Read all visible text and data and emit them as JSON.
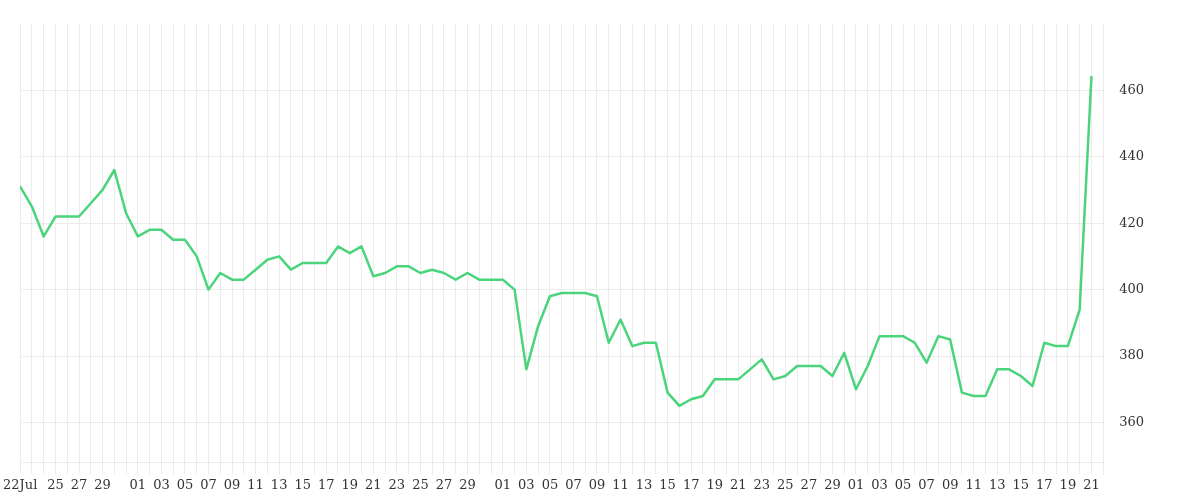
{
  "chart_data": {
    "type": "line",
    "color": "#4cd47d",
    "x": [
      "--07-22",
      "--07-23",
      "--07-24",
      "--07-25",
      "--07-26",
      "--07-27",
      "--07-28",
      "--07-29",
      "--07-30",
      "--07-31",
      "--08-01",
      "--08-02",
      "--08-03",
      "--08-04",
      "--08-05",
      "--08-06",
      "--08-07",
      "--08-08",
      "--08-09",
      "--08-10",
      "--08-11",
      "--08-12",
      "--08-13",
      "--08-14",
      "--08-15",
      "--08-16",
      "--08-17",
      "--08-18",
      "--08-19",
      "--08-20",
      "--08-21",
      "--08-22",
      "--08-23",
      "--08-24",
      "--08-25",
      "--08-26",
      "--08-27",
      "--08-28",
      "--08-29",
      "--08-30",
      "--08-31",
      "--09-01",
      "--09-02",
      "--09-03",
      "--09-04",
      "--09-05",
      "--09-06",
      "--09-07",
      "--09-08",
      "--09-09",
      "--09-10",
      "--09-11",
      "--09-12",
      "--09-13",
      "--09-14",
      "--09-15",
      "--09-16",
      "--09-17",
      "--09-18",
      "--09-19",
      "--09-20",
      "--09-21",
      "--09-22",
      "--09-23",
      "--09-24",
      "--09-25",
      "--09-26",
      "--09-27",
      "--09-28",
      "--09-29",
      "--09-30",
      "--10-01",
      "--10-02",
      "--10-03",
      "--10-04",
      "--10-05",
      "--10-06",
      "--10-07",
      "--10-08",
      "--10-09",
      "--10-10",
      "--10-11",
      "--10-12",
      "--10-13",
      "--10-14",
      "--10-15",
      "--10-16",
      "--10-17",
      "--10-18",
      "--10-19",
      "--10-20",
      "--10-21"
    ],
    "values": [
      431,
      425,
      416,
      422,
      422,
      422,
      426,
      430,
      436,
      423,
      416,
      418,
      418,
      415,
      415,
      410,
      400,
      405,
      403,
      403,
      406,
      409,
      410,
      406,
      408,
      408,
      408,
      413,
      411,
      413,
      404,
      405,
      407,
      407,
      405,
      406,
      405,
      403,
      405,
      403,
      403,
      403,
      400,
      376,
      389,
      398,
      399,
      399,
      399,
      398,
      384,
      391,
      383,
      384,
      384,
      369,
      365,
      367,
      368,
      373,
      373,
      373,
      376,
      379,
      373,
      374,
      377,
      377,
      377,
      374,
      381,
      370,
      377,
      386,
      386,
      386,
      384,
      378,
      386,
      385,
      369,
      368,
      368,
      376,
      376,
      374,
      371,
      384,
      383,
      383,
      394,
      464
    ],
    "xlim": [
      "--07-22",
      "--10-22"
    ],
    "xticks": [
      {
        "value": "--07-22",
        "label": "22Jul"
      },
      {
        "value": "--07-23",
        "label": null
      },
      {
        "value": "--07-24",
        "label": null
      },
      {
        "value": "--07-25",
        "label": "25"
      },
      {
        "value": "--07-26",
        "label": null
      },
      {
        "value": "--07-27",
        "label": "27"
      },
      {
        "value": "--07-28",
        "label": null
      },
      {
        "value": "--07-29",
        "label": "29"
      },
      {
        "value": "--07-30",
        "label": null
      },
      {
        "value": "--07-31",
        "label": null
      },
      {
        "value": "--08-01",
        "label": "01"
      },
      {
        "value": "--08-02",
        "label": null
      },
      {
        "value": "--08-03",
        "label": "03"
      },
      {
        "value": "--08-04",
        "label": null
      },
      {
        "value": "--08-05",
        "label": "05"
      },
      {
        "value": "--08-06",
        "label": null
      },
      {
        "value": "--08-07",
        "label": "07"
      },
      {
        "value": "--08-08",
        "label": null
      },
      {
        "value": "--08-09",
        "label": "09"
      },
      {
        "value": "--08-10",
        "label": null
      },
      {
        "value": "--08-11",
        "label": "11"
      },
      {
        "value": "--08-12",
        "label": null
      },
      {
        "value": "--08-13",
        "label": "13"
      },
      {
        "value": "--08-14",
        "label": null
      },
      {
        "value": "--08-15",
        "label": "15"
      },
      {
        "value": "--08-16",
        "label": null
      },
      {
        "value": "--08-17",
        "label": "17"
      },
      {
        "value": "--08-18",
        "label": null
      },
      {
        "value": "--08-19",
        "label": "19"
      },
      {
        "value": "--08-20",
        "label": null
      },
      {
        "value": "--08-21",
        "label": "21"
      },
      {
        "value": "--08-22",
        "label": null
      },
      {
        "value": "--08-23",
        "label": "23"
      },
      {
        "value": "--08-24",
        "label": null
      },
      {
        "value": "--08-25",
        "label": "25"
      },
      {
        "value": "--08-26",
        "label": null
      },
      {
        "value": "--08-27",
        "label": "27"
      },
      {
        "value": "--08-28",
        "label": null
      },
      {
        "value": "--08-29",
        "label": "29"
      },
      {
        "value": "--08-30",
        "label": null
      },
      {
        "value": "--08-31",
        "label": null
      },
      {
        "value": "--09-01",
        "label": "01"
      },
      {
        "value": "--09-02",
        "label": null
      },
      {
        "value": "--09-03",
        "label": "03"
      },
      {
        "value": "--09-04",
        "label": null
      },
      {
        "value": "--09-05",
        "label": "05"
      },
      {
        "value": "--09-06",
        "label": null
      },
      {
        "value": "--09-07",
        "label": "07"
      },
      {
        "value": "--09-08",
        "label": null
      },
      {
        "value": "--09-09",
        "label": "09"
      },
      {
        "value": "--09-10",
        "label": null
      },
      {
        "value": "--09-11",
        "label": "11"
      },
      {
        "value": "--09-12",
        "label": null
      },
      {
        "value": "--09-13",
        "label": "13"
      },
      {
        "value": "--09-14",
        "label": null
      },
      {
        "value": "--09-15",
        "label": "15"
      },
      {
        "value": "--09-16",
        "label": null
      },
      {
        "value": "--09-17",
        "label": "17"
      },
      {
        "value": "--09-18",
        "label": null
      },
      {
        "value": "--09-19",
        "label": "19"
      },
      {
        "value": "--09-20",
        "label": null
      },
      {
        "value": "--09-21",
        "label": "21"
      },
      {
        "value": "--09-22",
        "label": null
      },
      {
        "value": "--09-23",
        "label": "23"
      },
      {
        "value": "--09-24",
        "label": null
      },
      {
        "value": "--09-25",
        "label": "25"
      },
      {
        "value": "--09-26",
        "label": null
      },
      {
        "value": "--09-27",
        "label": "27"
      },
      {
        "value": "--09-28",
        "label": null
      },
      {
        "value": "--09-29",
        "label": "29"
      },
      {
        "value": "--09-30",
        "label": null
      },
      {
        "value": "--10-01",
        "label": "01"
      },
      {
        "value": "--10-02",
        "label": null
      },
      {
        "value": "--10-03",
        "label": "03"
      },
      {
        "value": "--10-04",
        "label": null
      },
      {
        "value": "--10-05",
        "label": "05"
      },
      {
        "value": "--10-06",
        "label": null
      },
      {
        "value": "--10-07",
        "label": "07"
      },
      {
        "value": "--10-08",
        "label": null
      },
      {
        "value": "--10-09",
        "label": "09"
      },
      {
        "value": "--10-10",
        "label": null
      },
      {
        "value": "--10-11",
        "label": "11"
      },
      {
        "value": "--10-12",
        "label": null
      },
      {
        "value": "--10-13",
        "label": "13"
      },
      {
        "value": "--10-14",
        "label": null
      },
      {
        "value": "--10-15",
        "label": "15"
      },
      {
        "value": "--10-16",
        "label": null
      },
      {
        "value": "--10-17",
        "label": "17"
      },
      {
        "value": "--10-18",
        "label": null
      },
      {
        "value": "--10-19",
        "label": "19"
      },
      {
        "value": "--10-20",
        "label": null
      },
      {
        "value": "--10-21",
        "label": "21"
      },
      {
        "value": "--10-22",
        "label": null
      }
    ],
    "ylim": [
      348,
      480
    ],
    "yticks": [
      360,
      380,
      400,
      420,
      440,
      460
    ],
    "grid": true
  }
}
